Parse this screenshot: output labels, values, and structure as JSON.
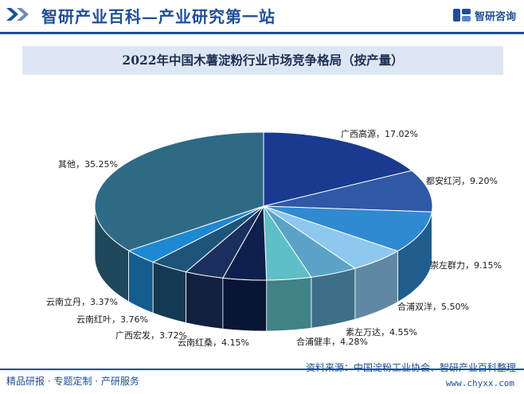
{
  "header": {
    "title": "智研产业百科—产业研究第一站",
    "brand_name": "智研咨询"
  },
  "footer": {
    "left_text": "精品研报 · 专题定制 · 产研服务",
    "source": "资料来源：中国淀粉工业协会、智研产业百科整理",
    "url": "www.chyxx.com"
  },
  "colors": {
    "brand": "#1f4e96",
    "title_bg": "#dde7f4"
  },
  "chart_data": {
    "type": "pie",
    "title": "2022年中国木薯淀粉行业市场竞争格局（按产量）",
    "unit": "%",
    "slices": [
      {
        "name": "广西高源",
        "value": 17.02,
        "label": "广西高源，17.02%",
        "color": "#1a3a8f"
      },
      {
        "name": "都安红河",
        "value": 9.2,
        "label": "都安红河，9.20%",
        "color": "#2f58a6"
      },
      {
        "name": "崇左群力",
        "value": 9.15,
        "label": "崇左群力，9.15%",
        "color": "#2f8ad1"
      },
      {
        "name": "合浦双洋",
        "value": 5.5,
        "label": "合浦双洋，5.50%",
        "color": "#8ec8ee"
      },
      {
        "name": "素左万达",
        "value": 4.55,
        "label": "素左万达，4.55%",
        "color": "#5aa3c6"
      },
      {
        "name": "合浦健丰",
        "value": 4.28,
        "label": "合浦健丰，4.28%",
        "color": "#5fbfc7"
      },
      {
        "name": "云南红桑",
        "value": 4.15,
        "label": "云南红桑，4.15%",
        "color": "#0d1f4d"
      },
      {
        "name": "广西宏发",
        "value": 3.72,
        "label": "广西宏发，3.72%",
        "color": "#1b2f5e"
      },
      {
        "name": "云南红叶",
        "value": 3.76,
        "label": "云南红叶，3.76%",
        "color": "#1d5478"
      },
      {
        "name": "云南立丹",
        "value": 3.37,
        "label": "云南立丹，3.37%",
        "color": "#1f88d2"
      },
      {
        "name": "其他",
        "value": 35.25,
        "label": "其他，35.25%",
        "color": "#2e6a86"
      }
    ]
  }
}
